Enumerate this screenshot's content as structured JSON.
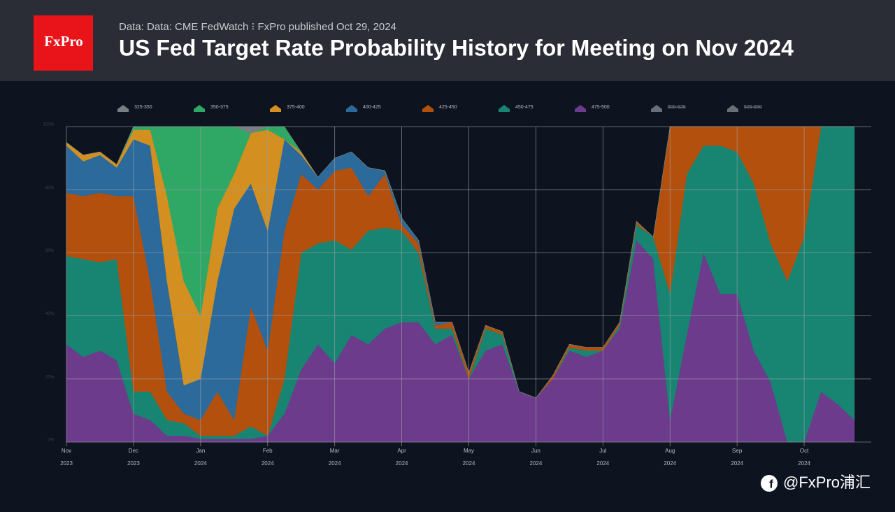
{
  "header": {
    "logo": "FxPro",
    "subtitle": "Data: Data: CME FedWatch ⁝ FxPro published Oct 29, 2024",
    "title": "US Fed Target Rate Probability History for Meeting on Nov 2024"
  },
  "watermark": "@FxPro浦汇",
  "chart_data": {
    "type": "stacked_area",
    "x": [
      0,
      0.25,
      0.5,
      0.75,
      1,
      1.25,
      1.5,
      1.75,
      2,
      2.25,
      2.5,
      2.75,
      3,
      3.25,
      3.5,
      3.75,
      4,
      4.25,
      4.5,
      4.75,
      5,
      5.25,
      5.5,
      5.75,
      6,
      6.25,
      6.5,
      6.75,
      7,
      7.25,
      7.5,
      7.75,
      8,
      8.25,
      8.5,
      8.75,
      9,
      9.25,
      9.5,
      9.75,
      10,
      10.25,
      10.5,
      10.75,
      11,
      11.25,
      11.5,
      11.75
    ],
    "xlim": [
      0,
      12
    ],
    "xticks": [
      {
        "value": 0,
        "label": "Nov 2023"
      },
      {
        "value": 1,
        "label": "Dec 2023"
      },
      {
        "value": 2,
        "label": "Jan 2024"
      },
      {
        "value": 3,
        "label": "Feb 2024"
      },
      {
        "value": 4,
        "label": "Mar 2024"
      },
      {
        "value": 5,
        "label": "Apr 2024"
      },
      {
        "value": 6,
        "label": "May 2024"
      },
      {
        "value": 7,
        "label": "Jun 2024"
      },
      {
        "value": 8,
        "label": "Jul 2024"
      },
      {
        "value": 9,
        "label": "Aug 2024"
      },
      {
        "value": 10,
        "label": "Sep 2024"
      },
      {
        "value": 11,
        "label": "Oct 2024"
      }
    ],
    "ylim": [
      0,
      100
    ],
    "yticks": [
      {
        "value": 0,
        "label": "0%"
      },
      {
        "value": 20,
        "label": "20%"
      },
      {
        "value": 40,
        "label": "40%"
      },
      {
        "value": 60,
        "label": "60%"
      },
      {
        "value": 80,
        "label": "80%"
      },
      {
        "value": 100,
        "label": "100%"
      }
    ],
    "grid": true,
    "series": [
      {
        "name": "325-350",
        "color": "#7a7d84",
        "values": [
          0,
          0,
          0,
          0,
          0,
          0,
          0,
          0,
          0,
          0,
          0,
          2,
          0,
          0,
          0,
          0,
          0,
          0,
          0,
          0,
          0,
          0,
          0,
          0,
          0,
          0,
          0,
          0,
          0,
          0,
          0,
          0,
          0,
          0,
          0,
          0,
          0,
          0,
          0,
          0,
          0,
          0,
          0,
          0,
          0,
          0,
          0,
          0
        ]
      },
      {
        "name": "350-375",
        "color": "#2ea864",
        "values": [
          0,
          0,
          0,
          0,
          1,
          1,
          22,
          49,
          60,
          26,
          15,
          0,
          1,
          4,
          0,
          0,
          0,
          0,
          0,
          0,
          0,
          0,
          0,
          0,
          0,
          0,
          0,
          0,
          0,
          0,
          0,
          0,
          0,
          0,
          0,
          0,
          0,
          0,
          0,
          0,
          0,
          0,
          0,
          0,
          0,
          0,
          0,
          0
        ]
      },
      {
        "name": "375-400",
        "color": "#d38f1f",
        "values": [
          1,
          2,
          1,
          1,
          3,
          5,
          27,
          33,
          20,
          23,
          11,
          16,
          32,
          0,
          1,
          0,
          0,
          0,
          0,
          0,
          0,
          0,
          0,
          0,
          0,
          0,
          0,
          0,
          0,
          0,
          0,
          0,
          0,
          0,
          0,
          0,
          0,
          0,
          0,
          0,
          0,
          0,
          0,
          0,
          0,
          0,
          0,
          0
        ]
      },
      {
        "name": "400-425",
        "color": "#2b6a9b",
        "values": [
          15,
          11,
          12,
          9,
          18,
          43,
          35,
          9,
          13,
          35,
          67,
          39,
          38,
          29,
          6,
          4,
          4,
          5,
          9,
          1,
          2,
          1,
          1,
          0,
          0,
          0,
          0,
          0,
          0,
          0,
          0,
          0,
          0,
          0,
          0,
          0,
          0,
          0,
          0,
          0,
          0,
          0,
          0,
          0,
          0,
          0,
          0,
          0
        ]
      },
      {
        "name": "425-450",
        "color": "#b4500e",
        "values": [
          20,
          20,
          22,
          20,
          62,
          35,
          9,
          3,
          5,
          14,
          5,
          38,
          27,
          47,
          25,
          17,
          22,
          26,
          11,
          17,
          2,
          3,
          1,
          2,
          2,
          1,
          1,
          0,
          0,
          1,
          1,
          1,
          1,
          1,
          1,
          0,
          53,
          15,
          6,
          6,
          8,
          18,
          37,
          49,
          35,
          0,
          0,
          0
        ]
      },
      {
        "name": "450-475",
        "color": "#178571",
        "values": [
          28,
          31,
          28,
          32,
          7,
          9,
          5,
          4,
          1,
          1,
          1,
          4,
          0,
          11,
          37,
          32,
          39,
          27,
          36,
          32,
          29,
          22,
          5,
          2,
          0,
          7,
          3,
          0,
          0,
          0,
          1,
          2,
          0,
          1,
          5,
          7,
          40,
          51,
          34,
          47,
          45,
          53,
          44,
          51,
          65,
          84,
          88,
          93
        ]
      },
      {
        "name": "475-500",
        "color": "#6c3b8c",
        "values": [
          31,
          27,
          29,
          26,
          9,
          7,
          2,
          2,
          1,
          1,
          1,
          1,
          2,
          9,
          23,
          31,
          25,
          34,
          31,
          36,
          38,
          38,
          31,
          34,
          20,
          29,
          31,
          16,
          14,
          20,
          29,
          27,
          29,
          36,
          64,
          58,
          7,
          34,
          60,
          47,
          47,
          29,
          19,
          0,
          0,
          16,
          12,
          7
        ]
      },
      {
        "name": "500-525",
        "color": "#6b6e75",
        "visible": false
      },
      {
        "name": "525-550",
        "color": "#6b6e75",
        "visible": false
      }
    ]
  }
}
